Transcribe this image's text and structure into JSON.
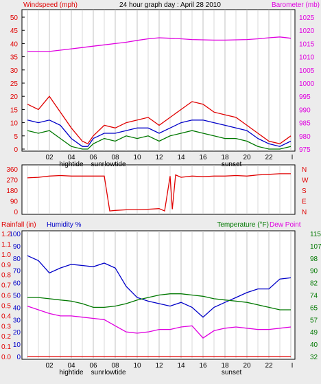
{
  "title": "24 hour graph day : April 28 2010",
  "colors": {
    "red": "#e00000",
    "blue": "#0000c8",
    "green": "#007800",
    "magenta": "#e000e0",
    "grid": "#c0c0c0",
    "frame": "#000000"
  },
  "chart_data": [
    {
      "type": "line",
      "name": "top-panel",
      "left_label": "Windspeed (mph)",
      "right_label": "Barometer (mb)",
      "x_ticks": [
        "02",
        "04",
        "06",
        "08",
        "10",
        "12",
        "14",
        "16",
        "18",
        "20",
        "22",
        "I"
      ],
      "x_annotations": [
        "hightide",
        "sunr",
        "lowtide",
        "sunset"
      ],
      "y_left_ticks": [
        "0",
        "5",
        "10",
        "15",
        "20",
        "25",
        "30",
        "35",
        "40",
        "45",
        "50"
      ],
      "y_right_ticks": [
        "975",
        "980",
        "985",
        "990",
        "995",
        "1000",
        "1005",
        "1010",
        "1015",
        "1020",
        "1025"
      ],
      "ylim_left": [
        0,
        50
      ],
      "ylim_right": [
        975,
        1025
      ],
      "series": [
        {
          "color": "#e000e0",
          "axis": "right",
          "hours": [
            0,
            1,
            2,
            3,
            4,
            5,
            6,
            7,
            8,
            9,
            10,
            11,
            12,
            13,
            14,
            15,
            16,
            17,
            18,
            19,
            20,
            21,
            22,
            23,
            24
          ],
          "values": [
            1012,
            1012,
            1012,
            1012.5,
            1013,
            1013.5,
            1014,
            1014.5,
            1015,
            1015.5,
            1016.2,
            1016.8,
            1017.2,
            1017,
            1016.8,
            1016.5,
            1016.4,
            1016.3,
            1016.3,
            1016.4,
            1016.5,
            1016.8,
            1017.2,
            1017.5,
            1017
          ]
        },
        {
          "color": "#e00000",
          "axis": "left",
          "hours": [
            0,
            1,
            2,
            3,
            4,
            5,
            5.5,
            6,
            7,
            8,
            9,
            10,
            11,
            12,
            13,
            14,
            15,
            16,
            17,
            18,
            19,
            20,
            21,
            22,
            23,
            24
          ],
          "values": [
            17,
            15,
            20,
            14,
            8,
            3,
            2,
            5,
            9,
            8,
            10,
            11,
            12,
            9,
            12,
            15,
            18,
            17,
            14,
            13,
            12,
            9,
            6,
            3,
            2,
            5
          ]
        },
        {
          "color": "#0000c8",
          "axis": "left",
          "hours": [
            0,
            1,
            2,
            3,
            4,
            5,
            5.5,
            6,
            7,
            8,
            9,
            10,
            11,
            12,
            13,
            14,
            15,
            16,
            17,
            18,
            19,
            20,
            21,
            22,
            23,
            24
          ],
          "values": [
            11,
            10,
            11,
            9,
            4,
            1,
            1,
            4,
            6,
            6,
            7,
            8,
            8,
            6,
            8,
            10,
            11,
            11,
            10,
            9,
            8,
            7,
            4,
            2,
            1,
            3
          ]
        },
        {
          "color": "#007800",
          "axis": "left",
          "hours": [
            0,
            1,
            2,
            3,
            4,
            5,
            5.5,
            6,
            7,
            8,
            9,
            10,
            11,
            12,
            13,
            14,
            15,
            16,
            17,
            18,
            19,
            20,
            21,
            22,
            23,
            24
          ],
          "values": [
            7,
            6,
            7,
            4,
            1,
            0,
            0,
            2,
            4,
            3,
            5,
            4,
            5,
            3,
            5,
            6,
            7,
            6,
            5,
            4,
            4,
            3,
            1,
            0,
            0,
            1
          ]
        }
      ]
    },
    {
      "type": "line",
      "name": "wind-direction-panel",
      "left_label": "",
      "y_left_ticks": [
        "360",
        "270",
        "180",
        "90",
        "0"
      ],
      "y_right_labels": [
        "N",
        "W",
        "S",
        "E",
        "N"
      ],
      "ylim_left": [
        0,
        360
      ],
      "series": [
        {
          "color": "#e00000",
          "axis": "left",
          "hours": [
            0,
            1,
            2,
            3,
            4,
            5,
            6,
            7,
            7.5,
            8,
            9,
            10,
            11,
            12,
            12.5,
            13,
            13.2,
            13.5,
            14,
            15,
            16,
            17,
            18,
            19,
            20,
            21,
            22,
            23,
            24
          ],
          "values": [
            285,
            290,
            300,
            305,
            300,
            300,
            300,
            300,
            5,
            10,
            15,
            15,
            20,
            25,
            5,
            300,
            20,
            310,
            290,
            300,
            295,
            300,
            300,
            305,
            300,
            310,
            315,
            320,
            320
          ]
        }
      ]
    },
    {
      "type": "line",
      "name": "bottom-panel",
      "left_label": "Rainfall (in)",
      "center_label": "Humidity %",
      "right_label": "Temperature (°F)",
      "right_label_2": "Dew Point",
      "y_left_ticks": [
        "1.2",
        "1.1",
        "1.0",
        "0.9",
        "0.8",
        "0.7",
        "0.6",
        "0.5",
        "0.4",
        "0.3",
        "0.2",
        "0.1",
        "0.0"
      ],
      "y_humidity_ticks": [
        "100",
        "90",
        "80",
        "70",
        "60",
        "50",
        "40",
        "30",
        "20",
        "10",
        "0"
      ],
      "y_right_ticks": [
        "115",
        "107",
        "98",
        "90",
        "82",
        "74",
        "65",
        "57",
        "49",
        "40",
        "32"
      ],
      "ylim_humidity": [
        0,
        100
      ],
      "series": [
        {
          "color": "#0000c8",
          "axis": "humidity",
          "hours": [
            0,
            1,
            2,
            3,
            4,
            5,
            6,
            7,
            8,
            9,
            10,
            11,
            12,
            13,
            14,
            15,
            16,
            17,
            18,
            19,
            20,
            21,
            22,
            23,
            24
          ],
          "values": [
            82,
            78,
            68,
            72,
            75,
            74,
            73,
            76,
            72,
            57,
            48,
            45,
            43,
            41,
            44,
            40,
            32,
            40,
            44,
            48,
            52,
            55,
            55,
            63,
            64
          ]
        },
        {
          "color": "#007800",
          "axis": "humidity",
          "hours": [
            0,
            1,
            2,
            3,
            4,
            5,
            6,
            7,
            8,
            9,
            10,
            11,
            12,
            13,
            14,
            15,
            16,
            17,
            18,
            19,
            20,
            21,
            22,
            23,
            24
          ],
          "values": [
            48,
            48,
            47,
            46,
            45,
            43,
            40,
            40,
            41,
            43,
            46,
            48,
            50,
            51,
            51,
            50,
            49,
            47,
            46,
            45,
            44,
            42,
            40,
            38,
            38
          ]
        },
        {
          "color": "#e000e0",
          "axis": "humidity",
          "hours": [
            0,
            1,
            2,
            3,
            4,
            5,
            6,
            7,
            8,
            9,
            10,
            11,
            12,
            13,
            14,
            15,
            16,
            17,
            18,
            19,
            20,
            21,
            22,
            23,
            24
          ],
          "values": [
            41,
            38,
            35,
            33,
            33,
            32,
            31,
            30,
            25,
            20,
            19,
            20,
            22,
            22,
            24,
            25,
            15,
            21,
            23,
            24,
            23,
            22,
            22,
            23,
            24
          ]
        },
        {
          "color": "#e00000",
          "axis": "humidity",
          "hours": [
            0,
            24
          ],
          "values": [
            0,
            0
          ]
        }
      ]
    }
  ]
}
